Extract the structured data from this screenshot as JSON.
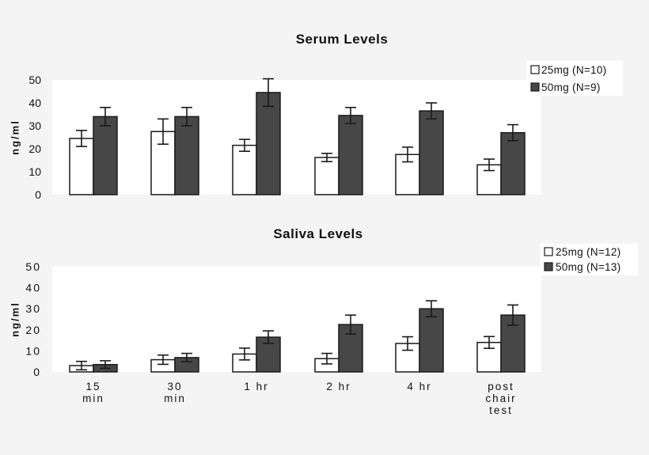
{
  "colors": {
    "page_bg": "#f4f4f4",
    "plot_bg": "#ffffff",
    "dose_25": "#ffffff",
    "dose_50": "#474747",
    "stroke": "#1a1a1a"
  },
  "chart_data": [
    {
      "type": "bar",
      "title": "Serum Levels",
      "xlabel": "",
      "ylabel": "ng/ml",
      "ylim": [
        0,
        50
      ],
      "yticks": [
        0,
        10,
        20,
        30,
        40,
        50
      ],
      "grid": false,
      "legend_position": "top-right",
      "categories": [
        "15 min",
        "30 min",
        "1 hr",
        "2 hr",
        "4 hr",
        "post chair test"
      ],
      "series": [
        {
          "name": "25mg (N=10)",
          "color": "#ffffff",
          "values": [
            24.5,
            27.5,
            21.5,
            16.2,
            17.5,
            13
          ],
          "errors": [
            3.5,
            5.5,
            2.6,
            1.8,
            3.2,
            2.5
          ]
        },
        {
          "name": "50mg (N=9)",
          "color": "#474747",
          "values": [
            34,
            34,
            44.5,
            34.5,
            36.5,
            27
          ],
          "errors": [
            4,
            4,
            6,
            3.5,
            3.5,
            3.5
          ]
        }
      ]
    },
    {
      "type": "bar",
      "title": "Saliva Levels",
      "xlabel": "",
      "ylabel": "ng/ml",
      "ylim": [
        0,
        50
      ],
      "yticks": [
        0,
        10,
        20,
        30,
        40,
        50
      ],
      "grid": false,
      "legend_position": "top-right",
      "categories": [
        "15 min",
        "30 min",
        "1 hr",
        "2 hr",
        "4 hr",
        "post chair test"
      ],
      "category_labels": [
        [
          "15",
          "min"
        ],
        [
          "30",
          "min"
        ],
        [
          "1 hr"
        ],
        [
          "2 hr"
        ],
        [
          "4 hr"
        ],
        [
          "post",
          "chair",
          "test"
        ]
      ],
      "series": [
        {
          "name": "25mg (N=12)",
          "color": "#ffffff",
          "values": [
            3,
            5.8,
            8.5,
            6.3,
            13.5,
            14
          ],
          "errors": [
            2,
            2.2,
            2.8,
            2.5,
            3.2,
            2.8
          ]
        },
        {
          "name": "50mg (N=13)",
          "color": "#474747",
          "values": [
            3.5,
            6.8,
            16.5,
            22.5,
            30,
            27
          ],
          "errors": [
            1.8,
            2,
            3,
            4.5,
            3.8,
            4.8
          ]
        }
      ]
    }
  ]
}
